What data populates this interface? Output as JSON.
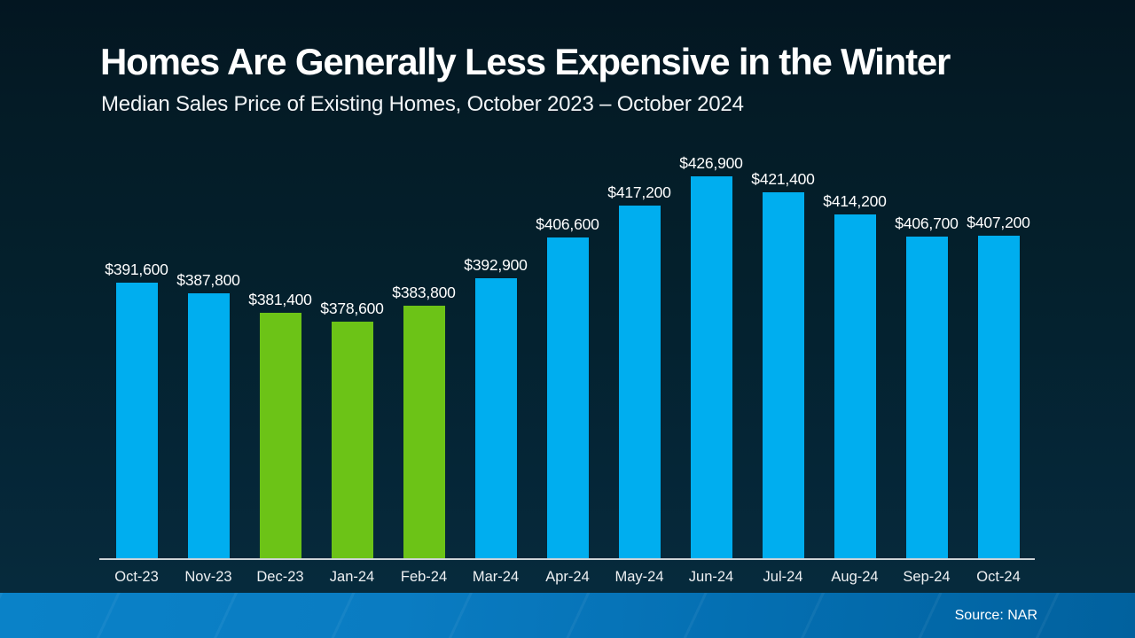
{
  "header": {
    "title": "Homes Are Generally Less Expensive in the Winter",
    "subtitle": "Median Sales Price of Existing Homes, October 2023 – October 2024"
  },
  "footer": {
    "source_label": "Source: NAR"
  },
  "colors": {
    "blue": "#00aeef",
    "green": "#6cc317",
    "background_top": "#031621",
    "background_bottom": "#072c3e",
    "footer_left": "#0a82c8",
    "footer_right": "#01619e",
    "axis_line": "#cdd3d7",
    "text": "#ffffff"
  },
  "chart_data": {
    "type": "bar",
    "title": "Homes Are Generally Less Expensive in the Winter",
    "subtitle": "Median Sales Price of Existing Homes, October 2023 – October 2024",
    "xlabel": "",
    "ylabel": "",
    "categories": [
      "Oct-23",
      "Nov-23",
      "Dec-23",
      "Jan-24",
      "Feb-24",
      "Mar-24",
      "Apr-24",
      "May-24",
      "Jun-24",
      "Jul-24",
      "Aug-24",
      "Sep-24",
      "Oct-24"
    ],
    "values": [
      391600,
      387800,
      381400,
      378600,
      383800,
      392900,
      406600,
      417200,
      426900,
      421400,
      414200,
      406700,
      407200
    ],
    "value_labels": [
      "$391,600",
      "$387,800",
      "$381,400",
      "$378,600",
      "$383,800",
      "$392,900",
      "$406,600",
      "$417,200",
      "$426,900",
      "$421,400",
      "$414,200",
      "$406,700",
      "$407,200"
    ],
    "bar_colors": [
      "blue",
      "blue",
      "green",
      "green",
      "green",
      "blue",
      "blue",
      "blue",
      "blue",
      "blue",
      "blue",
      "blue",
      "blue"
    ],
    "highlighted_categories": [
      "Dec-23",
      "Jan-24",
      "Feb-24"
    ],
    "ylim": [
      300000,
      430000
    ],
    "grid": false,
    "legend_position": "none",
    "source": "Source: NAR"
  }
}
